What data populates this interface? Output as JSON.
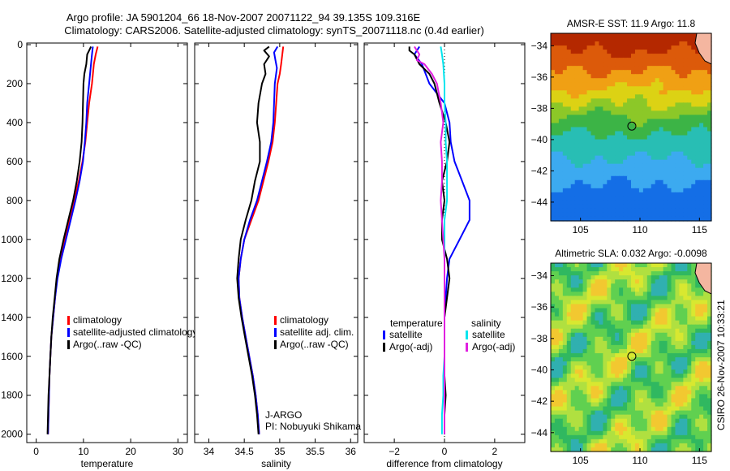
{
  "header": {
    "title_line1": "Argo profile: JA 5901204_66 18-Nov-2007 20071122_94 39.135S 109.316E",
    "title_line2": "Climatology: CARS2006. Satellite-adjusted climatology: synTS_20071118.nc (0.4d earlier)"
  },
  "side_stamp": "CSIRO 26-Nov-2007 10:33:21",
  "colors": {
    "climatology": "#ff0000",
    "satellite": "#0000ff",
    "argo": "#000000",
    "salinity_satellite": "#00e5ee",
    "salinity_argo": "#e020e0",
    "land": "#f4b6a0"
  },
  "chart_data": [
    {
      "type": "line",
      "xlabel": "temperature",
      "ylim": [
        0,
        2000
      ],
      "y_reversed": true,
      "yticks": [
        0,
        200,
        400,
        600,
        800,
        1000,
        1200,
        1400,
        1600,
        1800,
        2000
      ],
      "xlim": [
        -2,
        32
      ],
      "xticks": [
        0,
        10,
        20,
        30
      ],
      "legend": {
        "placement": "lower-right",
        "entries": [
          "climatology",
          "satellite-adjusted climatology",
          "Argo(..raw -QC)"
        ]
      },
      "series": [
        {
          "name": "climatology",
          "color": "#ff0000",
          "points": [
            [
              13.0,
              10
            ],
            [
              12.6,
              50
            ],
            [
              12.2,
              100
            ],
            [
              11.8,
              200
            ],
            [
              11.2,
              300
            ],
            [
              10.8,
              400
            ],
            [
              10.4,
              500
            ],
            [
              9.8,
              600
            ],
            [
              9.0,
              700
            ],
            [
              8.0,
              800
            ],
            [
              7.0,
              900
            ],
            [
              6.0,
              1000
            ],
            [
              5.0,
              1100
            ],
            [
              4.4,
              1200
            ],
            [
              4.0,
              1300
            ],
            [
              3.6,
              1400
            ],
            [
              3.2,
              1500
            ],
            [
              3.0,
              1600
            ],
            [
              2.8,
              1700
            ],
            [
              2.7,
              1800
            ],
            [
              2.6,
              1900
            ],
            [
              2.5,
              2000
            ]
          ]
        },
        {
          "name": "satellite-adjusted climatology",
          "color": "#0000ff",
          "points": [
            [
              12.0,
              10
            ],
            [
              11.8,
              50
            ],
            [
              11.6,
              100
            ],
            [
              11.2,
              200
            ],
            [
              10.8,
              300
            ],
            [
              10.6,
              400
            ],
            [
              10.3,
              500
            ],
            [
              9.9,
              600
            ],
            [
              9.2,
              700
            ],
            [
              8.3,
              800
            ],
            [
              7.3,
              900
            ],
            [
              6.3,
              1000
            ],
            [
              5.3,
              1100
            ],
            [
              4.5,
              1200
            ],
            [
              4.0,
              1300
            ],
            [
              3.6,
              1400
            ],
            [
              3.2,
              1500
            ],
            [
              3.0,
              1600
            ],
            [
              2.8,
              1700
            ],
            [
              2.7,
              1800
            ],
            [
              2.6,
              1900
            ],
            [
              2.5,
              2000
            ]
          ]
        },
        {
          "name": "Argo(..raw -QC)",
          "color": "#000000",
          "points": [
            [
              11.6,
              10
            ],
            [
              11.2,
              30
            ],
            [
              10.8,
              50
            ],
            [
              10.6,
              100
            ],
            [
              10.2,
              150
            ],
            [
              10.0,
              200
            ],
            [
              9.9,
              300
            ],
            [
              9.8,
              400
            ],
            [
              9.6,
              500
            ],
            [
              9.2,
              600
            ],
            [
              8.6,
              700
            ],
            [
              7.8,
              800
            ],
            [
              6.8,
              900
            ],
            [
              5.8,
              1000
            ],
            [
              4.9,
              1100
            ],
            [
              4.3,
              1200
            ],
            [
              3.9,
              1300
            ],
            [
              3.5,
              1400
            ],
            [
              3.2,
              1500
            ],
            [
              3.0,
              1600
            ],
            [
              2.8,
              1700
            ],
            [
              2.6,
              1800
            ],
            [
              2.5,
              1900
            ],
            [
              2.4,
              2000
            ]
          ]
        }
      ]
    },
    {
      "type": "line",
      "xlabel": "salinity",
      "ylim": [
        0,
        2000
      ],
      "y_reversed": true,
      "xlim": [
        33.8,
        36.1
      ],
      "xticks": [
        34,
        34.5,
        35,
        35.5,
        36
      ],
      "legend": {
        "placement": "lower-right",
        "entries": [
          "climatology",
          "satellite adj. clim.",
          "Argo(..raw -QC)"
        ]
      },
      "annotation": {
        "line1": "J-ARGO",
        "line2": "PI: Nobuyuki Shikama"
      },
      "series": [
        {
          "name": "climatology",
          "color": "#ff0000",
          "points": [
            [
              35.05,
              10
            ],
            [
              35.02,
              100
            ],
            [
              35.0,
              150
            ],
            [
              34.97,
              200
            ],
            [
              34.95,
              300
            ],
            [
              34.93,
              400
            ],
            [
              34.9,
              500
            ],
            [
              34.84,
              600
            ],
            [
              34.77,
              700
            ],
            [
              34.7,
              800
            ],
            [
              34.6,
              900
            ],
            [
              34.5,
              1000
            ],
            [
              34.45,
              1100
            ],
            [
              34.42,
              1200
            ],
            [
              34.43,
              1300
            ],
            [
              34.47,
              1400
            ],
            [
              34.52,
              1500
            ],
            [
              34.57,
              1600
            ],
            [
              34.62,
              1700
            ],
            [
              34.66,
              1800
            ],
            [
              34.69,
              1900
            ],
            [
              34.71,
              2000
            ]
          ]
        },
        {
          "name": "satellite adj. clim.",
          "color": "#0000ff",
          "points": [
            [
              34.97,
              10
            ],
            [
              34.92,
              40
            ],
            [
              34.94,
              80
            ],
            [
              34.96,
              120
            ],
            [
              34.93,
              200
            ],
            [
              34.92,
              300
            ],
            [
              34.91,
              400
            ],
            [
              34.88,
              500
            ],
            [
              34.82,
              600
            ],
            [
              34.75,
              700
            ],
            [
              34.68,
              800
            ],
            [
              34.58,
              900
            ],
            [
              34.5,
              1000
            ],
            [
              34.45,
              1100
            ],
            [
              34.42,
              1200
            ],
            [
              34.43,
              1300
            ],
            [
              34.47,
              1400
            ],
            [
              34.52,
              1500
            ],
            [
              34.57,
              1600
            ],
            [
              34.62,
              1700
            ],
            [
              34.66,
              1800
            ],
            [
              34.69,
              1900
            ],
            [
              34.71,
              2000
            ]
          ]
        },
        {
          "name": "Argo(..raw -QC)",
          "color": "#000000",
          "points": [
            [
              34.85,
              10
            ],
            [
              34.78,
              30
            ],
            [
              34.85,
              60
            ],
            [
              34.78,
              100
            ],
            [
              34.8,
              150
            ],
            [
              34.75,
              200
            ],
            [
              34.7,
              300
            ],
            [
              34.68,
              400
            ],
            [
              34.72,
              500
            ],
            [
              34.72,
              600
            ],
            [
              34.65,
              700
            ],
            [
              34.6,
              800
            ],
            [
              34.52,
              900
            ],
            [
              34.45,
              1000
            ],
            [
              34.42,
              1100
            ],
            [
              34.4,
              1200
            ],
            [
              34.42,
              1300
            ],
            [
              34.46,
              1400
            ],
            [
              34.51,
              1500
            ],
            [
              34.56,
              1600
            ],
            [
              34.61,
              1700
            ],
            [
              34.65,
              1800
            ],
            [
              34.68,
              1900
            ],
            [
              34.7,
              2000
            ]
          ]
        }
      ]
    },
    {
      "type": "line",
      "xlabel": "difference from climatology",
      "ylim": [
        0,
        2000
      ],
      "y_reversed": true,
      "xlim": [
        -3.2,
        3.2
      ],
      "xticks": [
        -2,
        0,
        2
      ],
      "zero_line": {
        "x": 0,
        "style": "dotted"
      },
      "legend": {
        "placement": "lower-center",
        "temperature_title": "temperature",
        "salinity_title": "salinity",
        "entries": [
          "satellite",
          "Argo(-adj)",
          "satellite",
          "Argo(-adj)"
        ]
      },
      "series": [
        {
          "name": "temperature satellite",
          "color": "#0000ff",
          "points": [
            [
              -1.0,
              10
            ],
            [
              -1.2,
              50
            ],
            [
              -0.9,
              100
            ],
            [
              -0.6,
              200
            ],
            [
              0.0,
              300
            ],
            [
              0.2,
              400
            ],
            [
              0.25,
              500
            ],
            [
              0.4,
              600
            ],
            [
              0.7,
              700
            ],
            [
              1.0,
              800
            ],
            [
              1.0,
              900
            ],
            [
              0.6,
              1000
            ],
            [
              0.2,
              1100
            ],
            [
              0.1,
              1200
            ],
            [
              0.05,
              1300
            ],
            [
              0.0,
              1400
            ],
            [
              0.0,
              1500
            ],
            [
              0.0,
              1600
            ],
            [
              0.0,
              1700
            ],
            [
              0.0,
              1800
            ],
            [
              0.0,
              1900
            ],
            [
              0.0,
              2000
            ]
          ]
        },
        {
          "name": "temperature Argo(-adj)",
          "color": "#000000",
          "points": [
            [
              -1.4,
              10
            ],
            [
              -1.4,
              30
            ],
            [
              -1.2,
              50
            ],
            [
              -1.0,
              100
            ],
            [
              -0.6,
              150
            ],
            [
              -0.4,
              200
            ],
            [
              -0.2,
              300
            ],
            [
              0.05,
              400
            ],
            [
              0.2,
              500
            ],
            [
              0.1,
              600
            ],
            [
              -0.1,
              700
            ],
            [
              0.0,
              800
            ],
            [
              -0.1,
              900
            ],
            [
              -0.1,
              1000
            ],
            [
              0.1,
              1100
            ],
            [
              0.2,
              1200
            ],
            [
              0.1,
              1300
            ],
            [
              0.0,
              1400
            ],
            [
              0.0,
              1500
            ],
            [
              0.0,
              1600
            ],
            [
              0.0,
              1700
            ],
            [
              0.05,
              1800
            ],
            [
              0.0,
              1900
            ],
            [
              0.0,
              2000
            ]
          ]
        },
        {
          "name": "salinity satellite",
          "color": "#00e5ee",
          "points": [
            [
              -0.15,
              10
            ],
            [
              -0.1,
              50
            ],
            [
              -0.05,
              100
            ],
            [
              0.0,
              200
            ],
            [
              0.0,
              300
            ],
            [
              0.05,
              400
            ],
            [
              0.05,
              500
            ],
            [
              0.1,
              600
            ],
            [
              0.1,
              700
            ],
            [
              0.1,
              800
            ],
            [
              0.0,
              900
            ],
            [
              0.0,
              1000
            ],
            [
              0.0,
              1100
            ],
            [
              0.0,
              1200
            ],
            [
              0.0,
              1300
            ],
            [
              0.0,
              1400
            ],
            [
              0.0,
              1500
            ],
            [
              0.0,
              1600
            ],
            [
              -0.05,
              1700
            ],
            [
              -0.05,
              1800
            ],
            [
              -0.1,
              1900
            ],
            [
              -0.1,
              2000
            ]
          ]
        },
        {
          "name": "salinity Argo(-adj)",
          "color": "#e020e0",
          "points": [
            [
              -1.2,
              10
            ],
            [
              -1.0,
              50
            ],
            [
              -1.1,
              80
            ],
            [
              -0.8,
              100
            ],
            [
              -0.5,
              150
            ],
            [
              -0.3,
              200
            ],
            [
              -0.15,
              300
            ],
            [
              -0.05,
              400
            ],
            [
              -0.15,
              500
            ],
            [
              -0.1,
              600
            ],
            [
              -0.1,
              700
            ],
            [
              -0.15,
              800
            ],
            [
              -0.1,
              900
            ],
            [
              -0.05,
              1000
            ],
            [
              0.0,
              1100
            ],
            [
              0.0,
              1200
            ],
            [
              0.0,
              1300
            ],
            [
              0.0,
              1400
            ],
            [
              0.0,
              1500
            ],
            [
              0.0,
              1600
            ],
            [
              0.0,
              1700
            ],
            [
              0.0,
              1800
            ],
            [
              0.0,
              1900
            ],
            [
              0.0,
              2000
            ]
          ]
        }
      ]
    },
    {
      "type": "heatmap",
      "title": "AMSR-E SST: 11.9 Argo: 11.8",
      "xlim": [
        102.5,
        116
      ],
      "xticks": [
        105,
        110,
        115
      ],
      "ylim": [
        -45.2,
        -33.2
      ],
      "yticks": [
        -34,
        -36,
        -38,
        -40,
        -42,
        -44
      ],
      "field": "sst",
      "marker": {
        "lon": 109.316,
        "lat": -39.135
      }
    },
    {
      "type": "heatmap",
      "title": "Altimetric SLA: 0.032 Argo: -0.0098",
      "xlim": [
        102.5,
        116
      ],
      "xticks": [
        105,
        110,
        115
      ],
      "ylim": [
        -45.2,
        -33.2
      ],
      "yticks": [
        -34,
        -36,
        -38,
        -40,
        -42,
        -44
      ],
      "field": "sla",
      "marker": {
        "lon": 109.316,
        "lat": -39.135
      }
    }
  ]
}
